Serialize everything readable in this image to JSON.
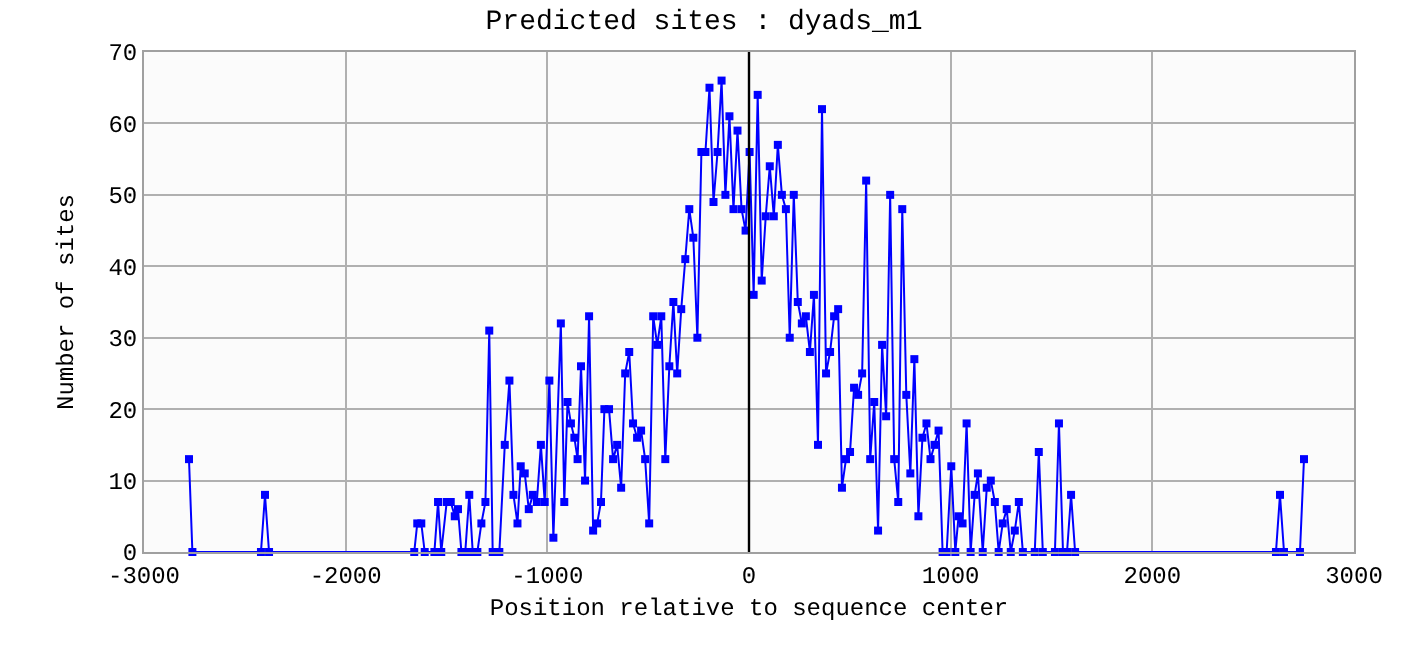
{
  "chart_data": {
    "type": "line",
    "title": "Predicted sites : dyads_m1",
    "xlabel": "Position relative to sequence center",
    "ylabel": "Number of sites",
    "x": [
      -2777,
      -2760,
      -2420,
      -2400,
      -2380,
      -1660,
      -1645,
      -1625,
      -1608,
      -1560,
      -1542,
      -1526,
      -1499,
      -1479,
      -1459,
      -1443,
      -1426,
      -1407,
      -1387,
      -1370,
      -1347,
      -1327,
      -1307,
      -1288,
      -1271,
      -1238,
      -1211,
      -1188,
      -1168,
      -1148,
      -1132,
      -1112,
      -1092,
      -1072,
      -1052,
      -1032,
      -1013,
      -990,
      -970,
      -933,
      -916,
      -900,
      -883,
      -866,
      -850,
      -833,
      -813,
      -793,
      -773,
      -753,
      -734,
      -717,
      -694,
      -674,
      -654,
      -634,
      -614,
      -594,
      -575,
      -555,
      -535,
      -515,
      -495,
      -475,
      -455,
      -435,
      -415,
      -395,
      -375,
      -356,
      -336,
      -316,
      -296,
      -276,
      -256,
      -236,
      -216,
      -196,
      -176,
      -156,
      -136,
      -117,
      -97,
      -77,
      -57,
      -37,
      -17,
      3,
      23,
      43,
      63,
      83,
      103,
      123,
      143,
      163,
      183,
      202,
      222,
      242,
      262,
      282,
      302,
      322,
      342,
      362,
      382,
      402,
      422,
      442,
      461,
      481,
      501,
      521,
      541,
      561,
      581,
      601,
      621,
      640,
      660,
      680,
      700,
      720,
      740,
      760,
      780,
      800,
      820,
      840,
      860,
      880,
      900,
      920,
      940,
      960,
      980,
      1003,
      1023,
      1039,
      1059,
      1079,
      1099,
      1119,
      1135,
      1159,
      1179,
      1199,
      1219,
      1238,
      1258,
      1278,
      1298,
      1318,
      1338,
      1358,
      1417,
      1437,
      1457,
      1517,
      1537,
      1557,
      1577,
      1597,
      1617,
      2613,
      2633,
      2653,
      2732,
      2752
    ],
    "series": [
      {
        "color": "#0000ff",
        "values": [
          13,
          0,
          0,
          8,
          0,
          0,
          4,
          4,
          0,
          0,
          7,
          0,
          7,
          7,
          5,
          6,
          0,
          0,
          8,
          0,
          0,
          4,
          7,
          31,
          0,
          0,
          15,
          24,
          8,
          4,
          12,
          11,
          6,
          8,
          7,
          15,
          7,
          24,
          2,
          32,
          7,
          21,
          18,
          16,
          13,
          26,
          10,
          33,
          3,
          4,
          7,
          20,
          20,
          13,
          15,
          9,
          25,
          28,
          18,
          16,
          17,
          13,
          4,
          33,
          29,
          33,
          13,
          26,
          35,
          25,
          34,
          41,
          48,
          44,
          30,
          56,
          56,
          65,
          49,
          56,
          66,
          50,
          61,
          48,
          59,
          48,
          45,
          56,
          36,
          64,
          38,
          47,
          54,
          47,
          57,
          50,
          48,
          30,
          50,
          35,
          32,
          33,
          28,
          36,
          15,
          62,
          25,
          28,
          33,
          34,
          9,
          13,
          14,
          23,
          22,
          25,
          52,
          13,
          21,
          3,
          29,
          19,
          50,
          13,
          7,
          48,
          22,
          11,
          27,
          5,
          16,
          18,
          13,
          15,
          17,
          0,
          0,
          12,
          0,
          5,
          4,
          18,
          0,
          8,
          11,
          0,
          9,
          10,
          7,
          0,
          4,
          6,
          0,
          3,
          7,
          0,
          0,
          14,
          0,
          0,
          18,
          0,
          0,
          8,
          0,
          0,
          8,
          0,
          0,
          13
        ]
      }
    ],
    "xlim": [
      -3000,
      3000
    ],
    "xticks": [
      -3000,
      -2000,
      -1000,
      0,
      1000,
      2000,
      3000
    ],
    "ylim": [
      0,
      70
    ],
    "yticks": [
      0,
      10,
      20,
      30,
      40,
      50,
      60,
      70
    ],
    "grid": true,
    "marker": "square",
    "line_style": "solid",
    "ref_lines": [
      {
        "axis": "x",
        "value": 0,
        "color": "#000000"
      }
    ]
  }
}
